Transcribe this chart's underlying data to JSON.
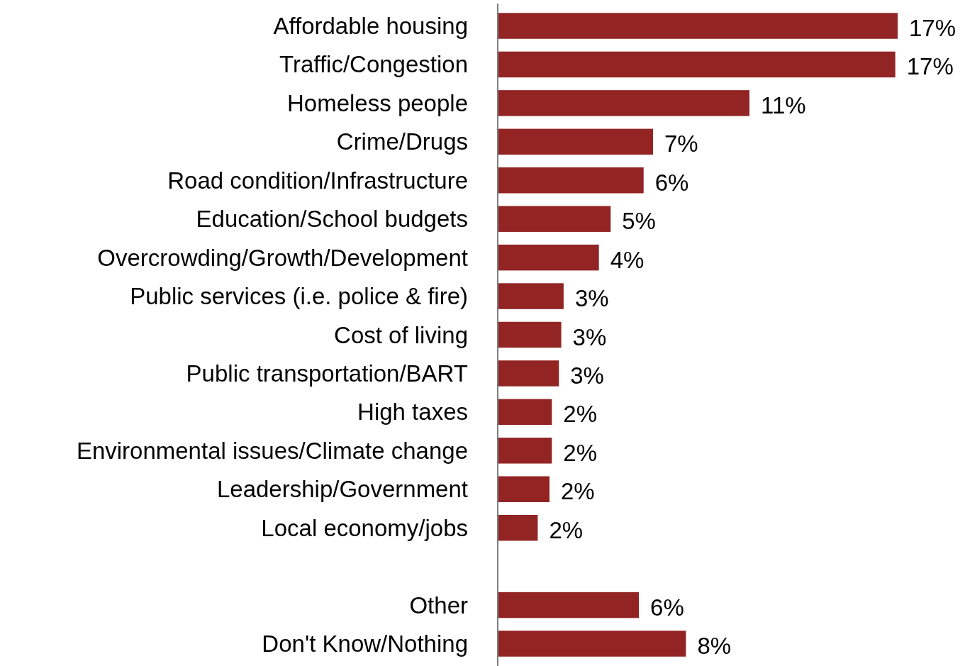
{
  "chart_data": {
    "type": "bar",
    "orientation": "horizontal",
    "categories": [
      "Affordable housing",
      "Traffic/Congestion",
      "Homeless people",
      "Crime/Drugs",
      "Road condition/Infrastructure",
      "Education/School budgets",
      "Overcrowding/Growth/Development",
      "Public services (i.e. police & fire)",
      "Cost of living",
      "Public transportation/BART",
      "High taxes",
      "Environmental issues/Climate change",
      "Leadership/Government",
      "Local economy/jobs",
      null,
      "Other",
      "Don't Know/Nothing"
    ],
    "values": [
      17.0,
      16.9,
      10.7,
      6.6,
      6.2,
      4.8,
      4.3,
      2.8,
      2.7,
      2.6,
      2.3,
      2.3,
      2.2,
      1.7,
      null,
      6.0,
      8.0
    ],
    "value_labels": [
      "17%",
      "17%",
      "11%",
      "7%",
      "6%",
      "5%",
      "4%",
      "3%",
      "3%",
      "3%",
      "2%",
      "2%",
      "2%",
      "2%",
      null,
      "6%",
      "8%"
    ],
    "color": "#922424",
    "xlim": [
      0,
      17
    ]
  }
}
